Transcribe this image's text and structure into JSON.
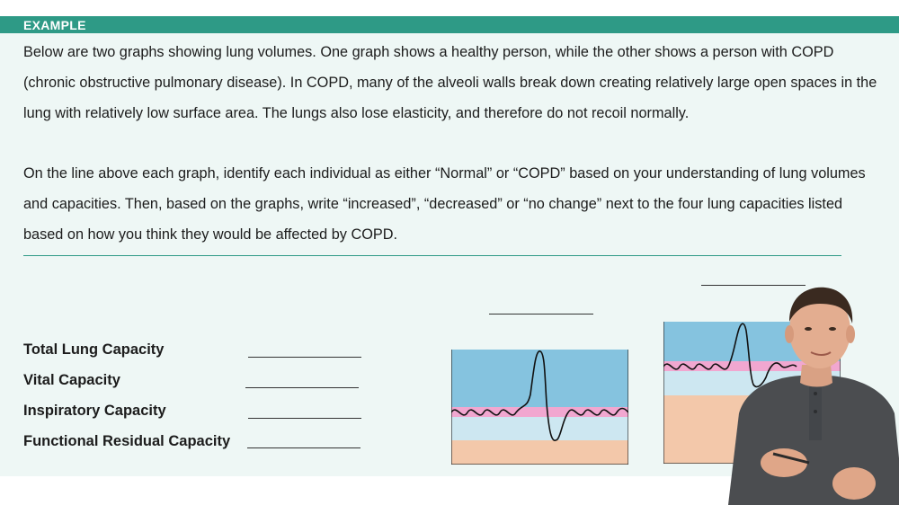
{
  "header": {
    "label": "EXAMPLE"
  },
  "paragraphs": [
    "Below are two graphs showing lung volumes. One graph shows a healthy person, while the other shows a person with COPD (chronic obstructive pulmonary disease). In COPD, many of the alveoli walls break down creating relatively large open spaces in the lung with relatively low surface area. The lungs also lose elasticity, and therefore do not recoil normally.",
    "On the line above each graph, identify each individual as either “Normal” or “COPD” based on your understanding of lung volumes and capacities. Then, based on the graphs, write “increased”, “decreased” or “no change” next to the four lung capacities listed based on how you think they would be affected by COPD."
  ],
  "capacities": [
    {
      "label": "Total Lung Capacity",
      "answer": ""
    },
    {
      "label": "Vital Capacity",
      "answer": ""
    },
    {
      "label": "Inspiratory Capacity",
      "answer": ""
    },
    {
      "label": "Functional Residual Capacity",
      "answer": ""
    }
  ],
  "graphs": [
    {
      "id": "graph-1",
      "answer": ""
    },
    {
      "id": "graph-2",
      "answer": ""
    }
  ],
  "colors": {
    "header": "#2e9a86",
    "panel": "#eef7f5",
    "inspiratory_reserve": "#85c3df",
    "tidal_volume": "#f1a7d0",
    "expiratory_reserve": "#cde7f1",
    "residual_volume": "#f3c8aa"
  },
  "icons": {
    "presenter": "person-presenter-icon"
  }
}
